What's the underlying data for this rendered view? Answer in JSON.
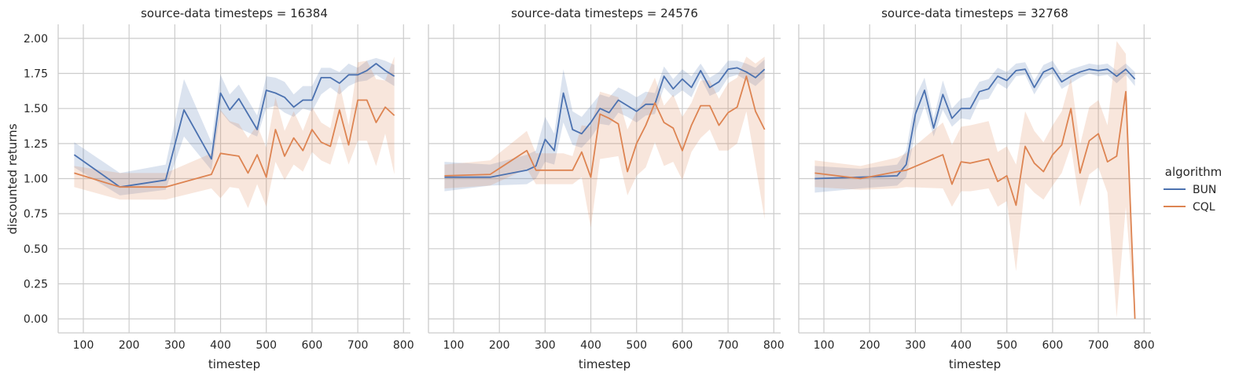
{
  "chart_data": [
    {
      "type": "line",
      "title": "source-data timesteps = 16384",
      "xlabel": "timestep",
      "ylabel": "discounted returns",
      "xlim": [
        45,
        815
      ],
      "ylim": [
        -0.1,
        2.1
      ],
      "xticks": [
        100,
        200,
        300,
        400,
        500,
        600,
        700,
        800
      ],
      "yticks": [
        0.0,
        0.25,
        0.5,
        0.75,
        1.0,
        1.25,
        1.5,
        1.75,
        2.0
      ],
      "xtick_labels": [
        "100",
        "200",
        "300",
        "400",
        "500",
        "600",
        "700",
        "800"
      ],
      "ytick_labels": [
        "0.00",
        "0.25",
        "0.50",
        "0.75",
        "1.00",
        "1.25",
        "1.50",
        "1.75",
        "2.00"
      ],
      "grid": true,
      "series": [
        {
          "name": "BUN",
          "x": [
            80,
            180,
            280,
            320,
            380,
            400,
            420,
            440,
            480,
            500,
            520,
            540,
            560,
            580,
            600,
            620,
            640,
            660,
            680,
            700,
            720,
            740,
            760,
            780
          ],
          "y": [
            1.17,
            0.94,
            0.99,
            1.49,
            1.14,
            1.61,
            1.49,
            1.57,
            1.35,
            1.63,
            1.61,
            1.58,
            1.51,
            1.56,
            1.56,
            1.72,
            1.72,
            1.68,
            1.74,
            1.74,
            1.77,
            1.82,
            1.77,
            1.73
          ],
          "lower": [
            1.08,
            0.88,
            0.92,
            1.3,
            1.06,
            1.48,
            1.4,
            1.36,
            1.3,
            1.5,
            1.52,
            1.47,
            1.44,
            1.5,
            1.48,
            1.6,
            1.65,
            1.6,
            1.66,
            1.69,
            1.7,
            1.74,
            1.7,
            1.66
          ],
          "upper": [
            1.26,
            1.04,
            1.1,
            1.71,
            1.26,
            1.74,
            1.6,
            1.67,
            1.45,
            1.73,
            1.72,
            1.69,
            1.6,
            1.66,
            1.66,
            1.79,
            1.79,
            1.76,
            1.82,
            1.79,
            1.84,
            1.86,
            1.84,
            1.81
          ]
        },
        {
          "name": "CQL",
          "x": [
            80,
            180,
            280,
            380,
            400,
            420,
            440,
            460,
            480,
            500,
            520,
            540,
            560,
            580,
            600,
            620,
            640,
            660,
            680,
            700,
            720,
            740,
            760,
            780
          ],
          "y": [
            1.04,
            0.94,
            0.94,
            1.03,
            1.18,
            1.17,
            1.16,
            1.04,
            1.17,
            1.01,
            1.35,
            1.16,
            1.29,
            1.2,
            1.35,
            1.26,
            1.23,
            1.49,
            1.24,
            1.56,
            1.56,
            1.4,
            1.51,
            1.45
          ],
          "lower": [
            0.94,
            0.85,
            0.85,
            0.93,
            0.86,
            0.94,
            0.93,
            0.79,
            0.96,
            0.8,
            1.12,
            0.99,
            1.1,
            1.05,
            1.19,
            1.13,
            1.1,
            1.31,
            1.1,
            1.27,
            1.27,
            1.09,
            1.32,
            1.03
          ],
          "upper": [
            1.09,
            1.04,
            1.04,
            1.18,
            1.49,
            1.41,
            1.39,
            1.29,
            1.38,
            1.22,
            1.58,
            1.34,
            1.48,
            1.34,
            1.51,
            1.4,
            1.36,
            1.68,
            1.38,
            1.83,
            1.84,
            1.71,
            1.7,
            1.87
          ]
        }
      ]
    },
    {
      "type": "line",
      "title": "source-data timesteps = 24576",
      "xlabel": "timestep",
      "xlim": [
        45,
        815
      ],
      "ylim": [
        -0.1,
        2.1
      ],
      "xticks": [
        100,
        200,
        300,
        400,
        500,
        600,
        700,
        800
      ],
      "xtick_labels": [
        "100",
        "200",
        "300",
        "400",
        "500",
        "600",
        "700",
        "800"
      ],
      "grid": true,
      "series": [
        {
          "name": "BUN",
          "x": [
            80,
            180,
            260,
            280,
            300,
            320,
            340,
            360,
            380,
            400,
            420,
            440,
            460,
            480,
            500,
            520,
            540,
            560,
            580,
            600,
            620,
            640,
            660,
            680,
            700,
            720,
            740,
            760,
            780
          ],
          "y": [
            1.01,
            1.01,
            1.06,
            1.09,
            1.28,
            1.2,
            1.61,
            1.35,
            1.32,
            1.4,
            1.5,
            1.47,
            1.56,
            1.52,
            1.48,
            1.53,
            1.53,
            1.73,
            1.64,
            1.71,
            1.65,
            1.77,
            1.65,
            1.69,
            1.78,
            1.79,
            1.76,
            1.72,
            1.78
          ],
          "lower": [
            0.91,
            0.95,
            0.96,
            1.0,
            1.12,
            1.1,
            1.4,
            1.24,
            1.22,
            1.29,
            1.39,
            1.38,
            1.47,
            1.44,
            1.4,
            1.45,
            1.46,
            1.65,
            1.58,
            1.63,
            1.58,
            1.72,
            1.59,
            1.62,
            1.72,
            1.74,
            1.7,
            1.66,
            1.72
          ],
          "upper": [
            1.12,
            1.1,
            1.17,
            1.2,
            1.44,
            1.32,
            1.78,
            1.48,
            1.44,
            1.52,
            1.6,
            1.58,
            1.65,
            1.62,
            1.58,
            1.62,
            1.61,
            1.8,
            1.71,
            1.78,
            1.73,
            1.82,
            1.72,
            1.76,
            1.84,
            1.84,
            1.82,
            1.79,
            1.85
          ]
        },
        {
          "name": "CQL",
          "x": [
            80,
            180,
            260,
            280,
            340,
            360,
            380,
            400,
            420,
            440,
            460,
            480,
            500,
            520,
            540,
            560,
            580,
            600,
            620,
            640,
            660,
            680,
            700,
            720,
            740,
            760,
            780
          ],
          "y": [
            1.02,
            1.03,
            1.2,
            1.06,
            1.06,
            1.06,
            1.19,
            1.01,
            1.46,
            1.43,
            1.39,
            1.05,
            1.25,
            1.38,
            1.54,
            1.4,
            1.36,
            1.2,
            1.38,
            1.52,
            1.52,
            1.38,
            1.47,
            1.51,
            1.73,
            1.48,
            1.35
          ],
          "lower": [
            0.93,
            0.95,
            1.07,
            0.96,
            0.96,
            0.96,
            1.01,
            0.65,
            1.14,
            1.15,
            1.16,
            0.88,
            1.02,
            1.08,
            1.26,
            1.09,
            1.12,
            0.99,
            1.19,
            1.29,
            1.35,
            1.2,
            1.2,
            1.25,
            1.48,
            1.1,
            0.71
          ],
          "upper": [
            1.1,
            1.13,
            1.34,
            1.18,
            1.18,
            1.16,
            1.38,
            1.37,
            1.62,
            1.6,
            1.58,
            1.35,
            1.48,
            1.58,
            1.72,
            1.52,
            1.6,
            1.44,
            1.54,
            1.7,
            1.7,
            1.57,
            1.68,
            1.72,
            1.87,
            1.82,
            1.87
          ]
        }
      ]
    },
    {
      "type": "line",
      "title": "source-data timesteps = 32768",
      "xlabel": "timestep",
      "xlim": [
        45,
        815
      ],
      "ylim": [
        -0.1,
        2.1
      ],
      "xticks": [
        100,
        200,
        300,
        400,
        500,
        600,
        700,
        800
      ],
      "xtick_labels": [
        "100",
        "200",
        "300",
        "400",
        "500",
        "600",
        "700",
        "800"
      ],
      "grid": true,
      "series": [
        {
          "name": "BUN",
          "x": [
            80,
            180,
            260,
            280,
            300,
            320,
            340,
            360,
            380,
            400,
            420,
            440,
            460,
            480,
            500,
            520,
            540,
            560,
            580,
            600,
            620,
            640,
            660,
            680,
            700,
            720,
            740,
            760,
            780
          ],
          "y": [
            1.0,
            1.01,
            1.02,
            1.1,
            1.46,
            1.63,
            1.36,
            1.6,
            1.43,
            1.5,
            1.5,
            1.62,
            1.64,
            1.73,
            1.7,
            1.77,
            1.78,
            1.65,
            1.76,
            1.79,
            1.69,
            1.73,
            1.76,
            1.78,
            1.77,
            1.78,
            1.73,
            1.78,
            1.71
          ],
          "lower": [
            0.9,
            0.93,
            0.95,
            1.01,
            1.33,
            1.52,
            1.3,
            1.49,
            1.37,
            1.43,
            1.42,
            1.56,
            1.57,
            1.68,
            1.64,
            1.73,
            1.74,
            1.6,
            1.71,
            1.75,
            1.64,
            1.68,
            1.72,
            1.75,
            1.73,
            1.74,
            1.68,
            1.74,
            1.66
          ],
          "upper": [
            1.09,
            1.07,
            1.1,
            1.2,
            1.58,
            1.72,
            1.43,
            1.7,
            1.5,
            1.57,
            1.58,
            1.69,
            1.71,
            1.79,
            1.76,
            1.82,
            1.83,
            1.7,
            1.81,
            1.84,
            1.74,
            1.78,
            1.8,
            1.82,
            1.81,
            1.82,
            1.77,
            1.82,
            1.76
          ]
        },
        {
          "name": "CQL",
          "x": [
            80,
            180,
            260,
            280,
            360,
            380,
            400,
            420,
            460,
            480,
            500,
            520,
            540,
            560,
            580,
            600,
            620,
            640,
            660,
            680,
            700,
            720,
            740,
            760,
            780
          ],
          "y": [
            1.04,
            1.0,
            1.05,
            1.06,
            1.17,
            0.96,
            1.12,
            1.11,
            1.14,
            0.98,
            1.02,
            0.81,
            1.23,
            1.11,
            1.05,
            1.17,
            1.24,
            1.5,
            1.04,
            1.27,
            1.32,
            1.12,
            1.16,
            1.62,
            0.0
          ],
          "lower": [
            0.94,
            0.92,
            0.93,
            0.94,
            0.93,
            0.8,
            0.91,
            0.91,
            0.93,
            0.8,
            0.84,
            0.34,
            0.97,
            0.9,
            0.85,
            0.95,
            1.04,
            1.23,
            0.8,
            1.03,
            1.08,
            0.9,
            0.01,
            0.8,
            0.0
          ],
          "upper": [
            1.13,
            1.09,
            1.15,
            1.18,
            1.4,
            1.24,
            1.37,
            1.38,
            1.41,
            1.19,
            1.23,
            1.1,
            1.48,
            1.34,
            1.26,
            1.38,
            1.48,
            1.72,
            1.24,
            1.51,
            1.56,
            1.38,
            1.98,
            1.89,
            0.0
          ]
        }
      ]
    }
  ],
  "legend": {
    "title": "algorithm",
    "position": "right",
    "items": [
      {
        "label": "BUN",
        "color": "#4c72b0"
      },
      {
        "label": "CQL",
        "color": "#dd8452"
      }
    ]
  },
  "colors": {
    "BUN": "#4c72b0",
    "CQL": "#dd8452",
    "grid": "#cccccc",
    "spine": "#cccccc"
  }
}
